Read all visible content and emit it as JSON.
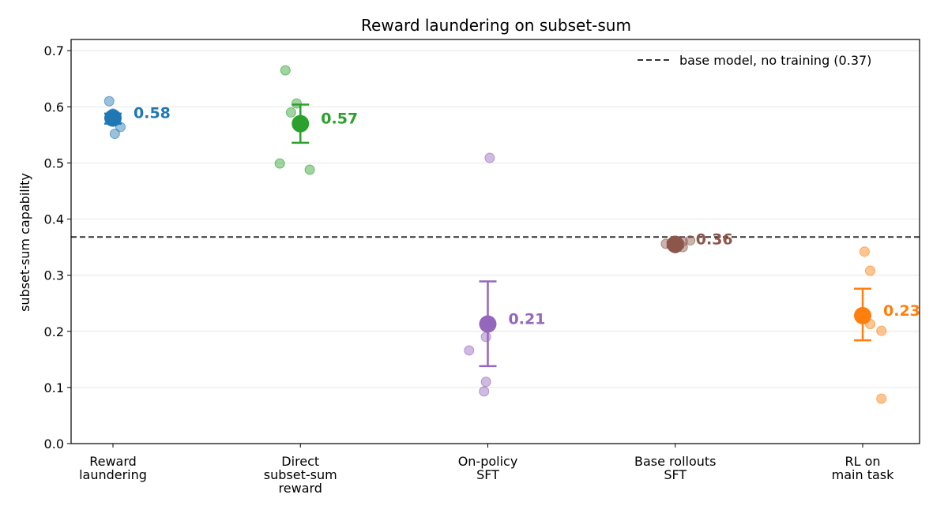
{
  "chart_data": {
    "type": "scatter",
    "title": "Reward laundering on subset-sum",
    "xlabel": "",
    "ylabel": "subset-sum capability",
    "ylim": [
      0,
      0.72
    ],
    "yticks": [
      "0.0",
      "0.1",
      "0.2",
      "0.3",
      "0.4",
      "0.5",
      "0.6",
      "0.7"
    ],
    "grid": "horizontal",
    "legend_position": "top-right",
    "reference_line": {
      "y": 0.368,
      "label": "base model, no training (0.37)",
      "style": "dashed",
      "color": "#333333"
    },
    "groups": [
      {
        "category": [
          "Reward",
          "laundering"
        ],
        "color": "#1f77b4",
        "mean": 0.58,
        "mean_label": "0.58",
        "err_low": 0.57,
        "err_high": 0.588,
        "points": [
          [
            -0.02,
            0.61
          ],
          [
            0.0,
            0.588
          ],
          [
            0.01,
            0.58
          ],
          [
            0.04,
            0.564
          ],
          [
            0.01,
            0.552
          ],
          [
            -0.01,
            0.575
          ]
        ]
      },
      {
        "category": [
          "Direct",
          "subset-sum",
          "reward"
        ],
        "color": "#2ca02c",
        "mean": 0.57,
        "mean_label": "0.57",
        "err_low": 0.536,
        "err_high": 0.604,
        "points": [
          [
            -0.08,
            0.665
          ],
          [
            -0.02,
            0.606
          ],
          [
            -0.05,
            0.59
          ],
          [
            -0.11,
            0.499
          ],
          [
            0.05,
            0.488
          ]
        ]
      },
      {
        "category": [
          "On-policy",
          "SFT"
        ],
        "color": "#9467bd",
        "mean": 0.213,
        "mean_label": "0.21",
        "err_low": 0.138,
        "err_high": 0.289,
        "points": [
          [
            0.01,
            0.509
          ],
          [
            -0.01,
            0.19
          ],
          [
            -0.1,
            0.166
          ],
          [
            -0.01,
            0.11
          ],
          [
            -0.02,
            0.093
          ]
        ]
      },
      {
        "category": [
          "Base rollouts",
          "SFT"
        ],
        "color": "#8c564b",
        "mean": 0.355,
        "mean_label": "0.36",
        "err_low": 0.35,
        "err_high": 0.36,
        "points": [
          [
            -0.05,
            0.356
          ],
          [
            0.04,
            0.36
          ],
          [
            0.08,
            0.362
          ],
          [
            0.0,
            0.348
          ],
          [
            0.04,
            0.35
          ]
        ]
      },
      {
        "category": [
          "RL on",
          "main task"
        ],
        "color": "#ff7f0e",
        "mean": 0.228,
        "mean_label": "0.23",
        "err_low": 0.184,
        "err_high": 0.276,
        "points": [
          [
            0.01,
            0.342
          ],
          [
            0.04,
            0.308
          ],
          [
            0.04,
            0.213
          ],
          [
            0.1,
            0.201
          ],
          [
            0.1,
            0.08
          ]
        ]
      }
    ]
  }
}
